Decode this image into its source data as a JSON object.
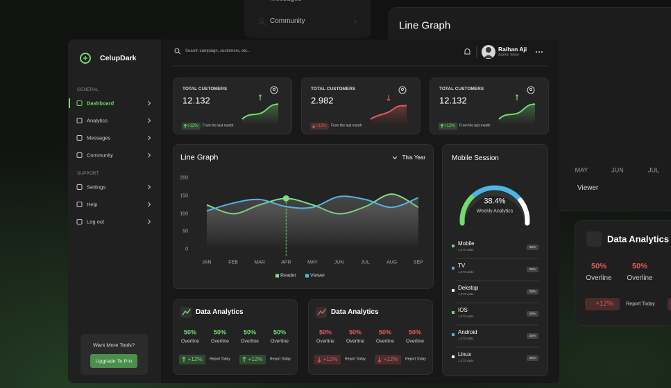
{
  "background": {
    "top_menu": [
      "Messages",
      "Community"
    ],
    "chart_title": "Line Graph",
    "months": [
      "MAY",
      "JUN",
      "JUL"
    ],
    "legend": "Viewer",
    "card": {
      "title": "Data Analytics",
      "values": [
        "50%",
        "50%"
      ],
      "labels": [
        "Overline",
        "Overline"
      ],
      "badge": "+12%",
      "badge_note": "Report Today"
    }
  },
  "sidebar": {
    "brand": "CelupDark",
    "sections": [
      {
        "title": "GENERAL",
        "items": [
          {
            "label": "Dashboard",
            "active": true
          },
          {
            "label": "Analytics"
          },
          {
            "label": "Messages"
          },
          {
            "label": "Community"
          }
        ]
      },
      {
        "title": "SUPPORT",
        "items": [
          {
            "label": "Settings"
          },
          {
            "label": "Help"
          },
          {
            "label": "Log out"
          }
        ]
      }
    ],
    "upgrade": {
      "text": "Want More Tools?",
      "button": "Upgrade To Pro"
    }
  },
  "header": {
    "search_placeholder": "Search campaign, customers, etc...",
    "user_name": "Raihan Aji",
    "user_role": "Admin Store"
  },
  "stats": [
    {
      "label": "TOTAL CUSTOMERS",
      "value": "12.132",
      "change": "+12%",
      "note": "From the last month",
      "trend": "up"
    },
    {
      "label": "TOTAL CUSTOMERS",
      "value": "2.982",
      "change": "+12%",
      "note": "From the last month",
      "trend": "down"
    },
    {
      "label": "TOTAL CUSTOMERS",
      "value": "12.132",
      "change": "+12%",
      "note": "From the last month",
      "trend": "up"
    }
  ],
  "chart_data": {
    "type": "line",
    "title": "Line Graph",
    "period": "This Year",
    "categories": [
      "JAN",
      "FEB",
      "MAR",
      "APR",
      "MAY",
      "JUN",
      "JUL",
      "AUG",
      "SEP"
    ],
    "series": [
      {
        "name": "Reader",
        "color": "#7ee07e",
        "values": [
          125,
          100,
          125,
          143,
          125,
          100,
          120,
          155,
          118
        ]
      },
      {
        "name": "Viewer",
        "color": "#4fb6ea",
        "values": [
          108,
          130,
          140,
          120,
          118,
          148,
          140,
          118,
          145
        ]
      }
    ],
    "ylim": [
      0,
      200
    ],
    "yticks": [
      0,
      50,
      100,
      150,
      200
    ],
    "grid": false,
    "highlight_index": 3
  },
  "mobile_session": {
    "title": "Mobile Session",
    "gauge_value": "38.4%",
    "gauge_label": "Weekly Analytics",
    "devices": [
      {
        "name": "Mobile",
        "visits": "1,273 visits",
        "share": "35%",
        "color": "#6fdc6f"
      },
      {
        "name": "TV",
        "visits": "1,273 visits",
        "share": "35%",
        "color": "#4db5e6"
      },
      {
        "name": "Dekstop",
        "visits": "1,273 visits",
        "share": "35%",
        "color": "#ffffff"
      },
      {
        "name": "IOS",
        "visits": "1,273 visits",
        "share": "35%",
        "color": "#6fdc6f"
      },
      {
        "name": "Android",
        "visits": "1,273 visits",
        "share": "35%",
        "color": "#4db5e6"
      },
      {
        "name": "Linux",
        "visits": "1,273 visits",
        "share": "35%",
        "color": "#ffffff"
      }
    ]
  },
  "analytics": [
    {
      "title": "Data Analytics",
      "trend": "up",
      "metrics": [
        {
          "value": "50%",
          "label": "Overline"
        },
        {
          "value": "50%",
          "label": "Overline"
        },
        {
          "value": "50%",
          "label": "Overline"
        },
        {
          "value": "50%",
          "label": "Overline"
        }
      ],
      "badges": [
        {
          "change": "+12%",
          "note": "Report Today"
        },
        {
          "change": "+12%",
          "note": "Report Today"
        }
      ]
    },
    {
      "title": "Data Analytics",
      "trend": "down",
      "metrics": [
        {
          "value": "50%",
          "label": "Overline"
        },
        {
          "value": "50%",
          "label": "Overline"
        },
        {
          "value": "50%",
          "label": "Overline"
        },
        {
          "value": "50%",
          "label": "Overline"
        }
      ],
      "badges": [
        {
          "change": "+12%",
          "note": "Report Today"
        },
        {
          "change": "+12%",
          "note": "Report Today"
        }
      ]
    }
  ]
}
